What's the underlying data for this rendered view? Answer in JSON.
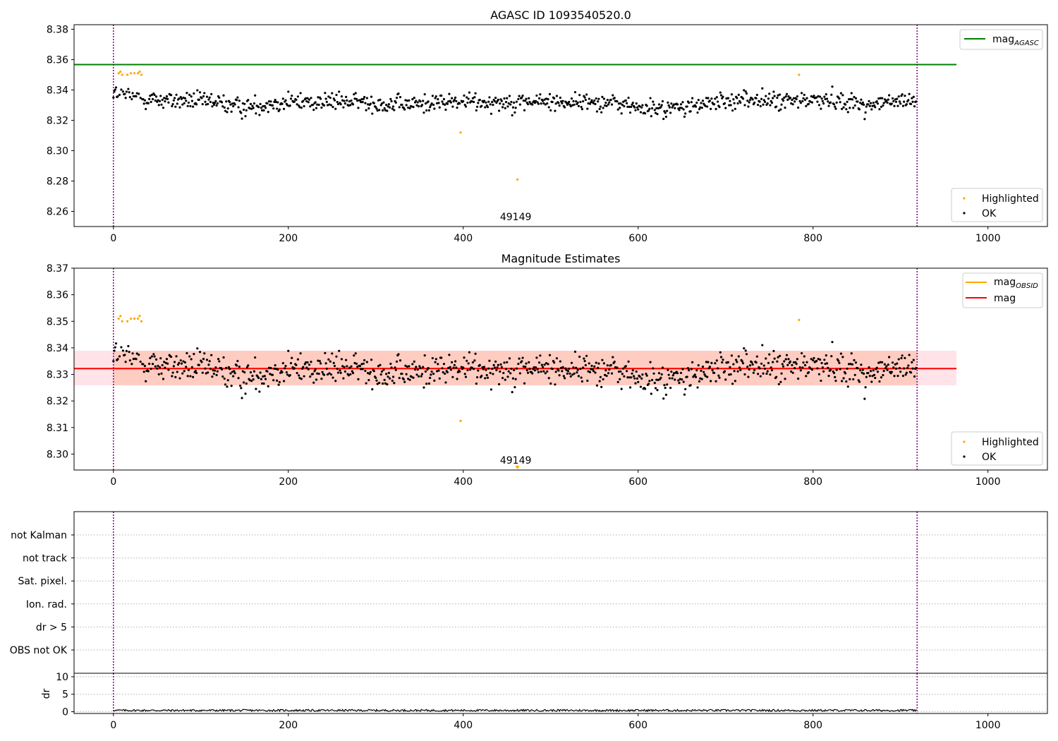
{
  "colors": {
    "ok": "#000000",
    "highlighted": "#ffa500",
    "mag_agasc": "#008000",
    "mag_obsid": "#ffa500",
    "mag": "#ff0000",
    "band_outer": "#ffc0cb",
    "band_inner": "#ffa07a",
    "obs_boundary": "#800080"
  },
  "chart_data": [
    {
      "type": "scatter",
      "title": "AGASC ID 1093540520.0",
      "xlabel": "",
      "ylabel": "",
      "xlim": [
        -45,
        1068
      ],
      "ylim": [
        8.25,
        8.383
      ],
      "xticks": [
        0,
        200,
        400,
        600,
        800,
        1000
      ],
      "yticks": [
        8.26,
        8.28,
        8.3,
        8.32,
        8.34,
        8.36,
        8.38
      ],
      "ytick_labels": [
        "8.26",
        "8.28",
        "8.30",
        "8.32",
        "8.34",
        "8.36",
        "8.38"
      ],
      "mag_agasc": 8.3567,
      "mag_agasc_x_end": 964,
      "obs_boundaries": [
        0,
        919
      ],
      "obs_labels": [
        {
          "x": 460,
          "text": "49149"
        }
      ],
      "highlighted_points": [
        [
          6,
          8.351
        ],
        [
          8,
          8.352
        ],
        [
          10,
          8.35
        ],
        [
          16,
          8.35
        ],
        [
          20,
          8.351
        ],
        [
          24,
          8.351
        ],
        [
          28,
          8.351
        ],
        [
          30,
          8.352
        ],
        [
          32,
          8.35
        ],
        [
          397,
          8.312
        ],
        [
          462,
          8.281
        ],
        [
          784,
          8.35
        ]
      ],
      "series": [
        {
          "name": "Highlighted",
          "count": 12
        },
        {
          "name": "OK",
          "count": 907
        }
      ],
      "legend": [
        "mag_AGASC",
        "Highlighted",
        "OK"
      ],
      "grid": false
    },
    {
      "type": "scatter",
      "title": "Magnitude Estimates",
      "xlabel": "",
      "ylabel": "",
      "xlim": [
        -45,
        1068
      ],
      "ylim": [
        8.294,
        8.37
      ],
      "xticks": [
        0,
        200,
        400,
        600,
        800,
        1000
      ],
      "yticks": [
        8.3,
        8.31,
        8.32,
        8.33,
        8.34,
        8.35,
        8.36,
        8.37
      ],
      "ytick_labels": [
        "8.30",
        "8.31",
        "8.32",
        "8.33",
        "8.34",
        "8.35",
        "8.36",
        "8.37"
      ],
      "mag": 8.3322,
      "mag_obsid": 8.3322,
      "mag_x_start": -45,
      "mag_x_end": 964,
      "band_outer": [
        8.3259,
        8.3389
      ],
      "band_outer_x": [
        -45,
        964
      ],
      "band_inner": [
        8.3259,
        8.3389
      ],
      "band_inner_x": [
        0,
        919
      ],
      "obs_boundaries": [
        0,
        919
      ],
      "obs_labels": [
        {
          "x": 460,
          "text": "49149"
        }
      ],
      "offscale_marker_x": 462,
      "highlighted_points": [
        [
          6,
          8.351
        ],
        [
          8,
          8.352
        ],
        [
          10,
          8.35
        ],
        [
          16,
          8.35
        ],
        [
          20,
          8.351
        ],
        [
          24,
          8.351
        ],
        [
          28,
          8.351
        ],
        [
          30,
          8.352
        ],
        [
          32,
          8.35
        ],
        [
          397,
          8.3125
        ],
        [
          784,
          8.3505
        ]
      ],
      "legend": [
        "mag_OBSID",
        "mag",
        "Highlighted",
        "OK"
      ],
      "grid": false
    },
    {
      "type": "scatter",
      "title": "",
      "xlim": [
        -45,
        1068
      ],
      "categories": [
        "not Kalman",
        "not track",
        "Sat. pixel.",
        "Ion. rad.",
        "dr > 5",
        "OBS not OK"
      ],
      "obs_boundaries": [
        0,
        919
      ],
      "flags_set": 0,
      "grid": true
    },
    {
      "type": "line",
      "title": "",
      "ylabel": "dr",
      "xlim": [
        -45,
        1068
      ],
      "ylim": [
        -0.5,
        11
      ],
      "yticks": [
        0,
        5,
        10
      ],
      "ytick_labels": [
        "0",
        "5",
        "10"
      ],
      "xticks": [
        0,
        200,
        400,
        600,
        800,
        1000
      ],
      "obs_boundaries": [
        0,
        919
      ],
      "dr_range": [
        0.1,
        0.9
      ],
      "grid": true
    }
  ],
  "legend_labels": {
    "mag_base": "mag",
    "agasc_sub": "AGASC",
    "obsid_sub": "OBSID",
    "highlighted": "Highlighted",
    "ok": "OK"
  }
}
